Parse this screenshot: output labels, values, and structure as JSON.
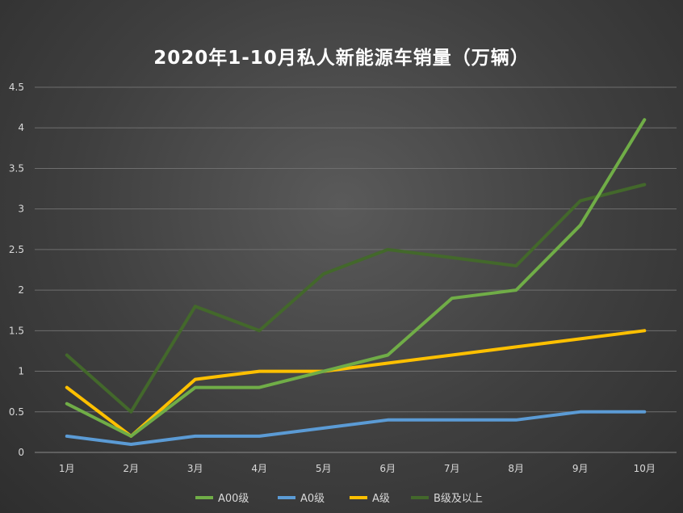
{
  "chart_data": {
    "type": "line",
    "title": "2020年1-10月私人新能源车销量（万辆）",
    "categories": [
      "1月",
      "2月",
      "3月",
      "4月",
      "5月",
      "6月",
      "7月",
      "8月",
      "9月",
      "10月"
    ],
    "ylim": [
      0,
      4.5
    ],
    "yticks": [
      "0",
      "0.5",
      "1",
      "1.5",
      "2",
      "2.5",
      "3",
      "3.5",
      "4",
      "4.5"
    ],
    "grid": true,
    "legend_position": "bottom",
    "series": [
      {
        "name": "A00级",
        "color": "#70ad47",
        "values": [
          0.6,
          0.2,
          0.8,
          0.8,
          1.0,
          1.2,
          1.9,
          2.0,
          2.8,
          4.1
        ]
      },
      {
        "name": "A0级",
        "color": "#5b9bd5",
        "values": [
          0.2,
          0.1,
          0.2,
          0.2,
          0.3,
          0.4,
          0.4,
          0.4,
          0.5,
          0.5
        ]
      },
      {
        "name": "A级",
        "color": "#ffc000",
        "values": [
          0.8,
          0.2,
          0.9,
          1.0,
          1.0,
          1.1,
          1.2,
          1.3,
          1.4,
          1.5
        ]
      },
      {
        "name": "B级及以上",
        "color": "#43682b",
        "values": [
          1.2,
          0.5,
          1.8,
          1.5,
          2.2,
          2.5,
          2.4,
          2.3,
          3.1,
          3.3
        ]
      }
    ]
  }
}
